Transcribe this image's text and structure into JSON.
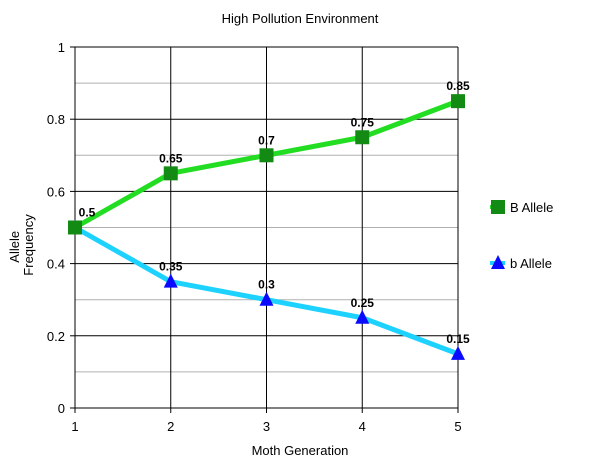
{
  "chart_data": {
    "type": "line",
    "title": "High Pollution Environment",
    "xlabel": "Moth Generation",
    "ylabel": [
      "Allele",
      "Frequency"
    ],
    "x": [
      1,
      2,
      3,
      4,
      5
    ],
    "xlim": [
      1,
      5
    ],
    "ylim": [
      0,
      1
    ],
    "y_major_ticks": [
      0,
      0.2,
      0.4,
      0.6,
      0.8,
      1
    ],
    "y_tick_labels": [
      "0",
      "0.2",
      "0.4",
      "0.6",
      "0.8",
      "1"
    ],
    "y_minor_ticks": [
      0.1,
      0.3,
      0.5,
      0.7,
      0.9
    ],
    "x_tick_labels": [
      "1",
      "2",
      "3",
      "4",
      "5"
    ],
    "grid": true,
    "legend_position": "right",
    "series": [
      {
        "name": "B Allele",
        "values": [
          0.5,
          0.65,
          0.7,
          0.75,
          0.85
        ],
        "labels": [
          "0.5",
          "0.65",
          "0.7",
          "0.75",
          "0.85"
        ],
        "line_color": "#22dd22",
        "marker_color": "#138a13",
        "marker": "square"
      },
      {
        "name": "b Allele",
        "values": [
          0.5,
          0.35,
          0.3,
          0.25,
          0.15
        ],
        "labels": [
          "",
          "0.35",
          "0.3",
          "0.25",
          "0.15"
        ],
        "line_color": "#1ed2ff",
        "marker_color": "#0a0aff",
        "marker": "triangle"
      }
    ]
  }
}
